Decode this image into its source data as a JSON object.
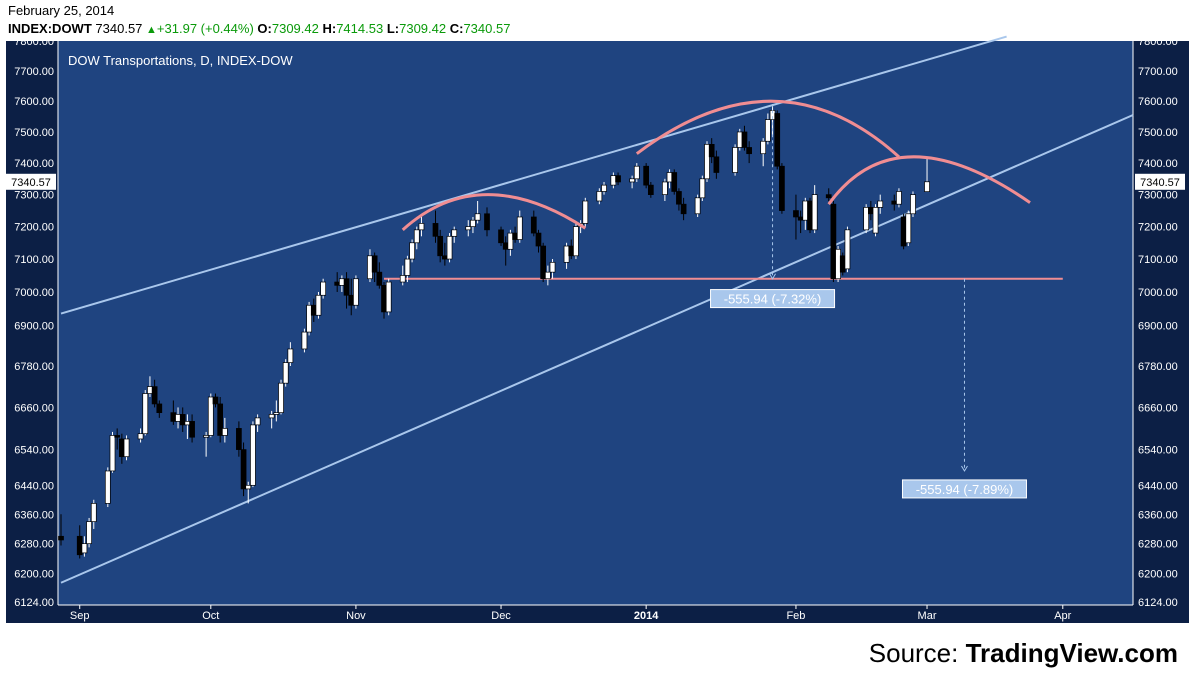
{
  "header": {
    "date": "February 25, 2014",
    "symbol": "INDEX:DOWT",
    "last": "7340.57",
    "change": "+31.97 (+0.44%)",
    "o_label": "O:",
    "o": "7309.42",
    "h_label": "H:",
    "h": "7414.53",
    "l_label": "L:",
    "l": "7309.42",
    "c_label": "C:",
    "c": "7340.57"
  },
  "source": {
    "prefix": "Source: ",
    "brand": "TradingView.com"
  },
  "chart_data": {
    "type": "candlestick",
    "title": "DOW Transportations, D, INDEX-DOW",
    "colors": {
      "background": "#1f4480",
      "frame": "#0c1f45",
      "up": "#ffffff",
      "down": "#000000",
      "channel": "#a9c7ec",
      "pattern": "#f08d92",
      "label_bg": "#a9c7ec"
    },
    "y_ticks": [
      "7800.00",
      "7700.00",
      "7600.00",
      "7500.00",
      "7400.00",
      "7300.00",
      "7200.00",
      "7100.00",
      "7000.00",
      "6900.00",
      "6780.00",
      "6660.00",
      "6540.00",
      "6440.00",
      "6360.00",
      "6280.00",
      "6200.00",
      "6124.00"
    ],
    "x_ticks": [
      {
        "label": "Sep",
        "date": "2013-09-03",
        "bold": false
      },
      {
        "label": "Oct",
        "date": "2013-10-01",
        "bold": false
      },
      {
        "label": "Nov",
        "date": "2013-11-01",
        "bold": false
      },
      {
        "label": "Dec",
        "date": "2013-12-02",
        "bold": false
      },
      {
        "label": "2014",
        "date": "2014-01-02",
        "bold": true
      },
      {
        "label": "Feb",
        "date": "2014-02-03",
        "bold": false
      },
      {
        "label": "Mar",
        "date": "2014-03-03",
        "bold": false
      },
      {
        "label": "Apr",
        "date": "2014-04-01",
        "bold": false
      }
    ],
    "last_price_label": "7340.57",
    "log_scale": true,
    "ylim": [
      6124,
      7800
    ],
    "xlim": [
      "2013-08-30",
      "2014-04-16"
    ],
    "candles": [
      {
        "d": "2013-08-30",
        "o": 6300,
        "h": 6360,
        "l": 6275,
        "c": 6290
      },
      {
        "d": "2013-09-03",
        "o": 6300,
        "h": 6330,
        "l": 6240,
        "c": 6250
      },
      {
        "d": "2013-09-04",
        "o": 6255,
        "h": 6300,
        "l": 6245,
        "c": 6280
      },
      {
        "d": "2013-09-05",
        "o": 6280,
        "h": 6350,
        "l": 6270,
        "c": 6340
      },
      {
        "d": "2013-09-06",
        "o": 6340,
        "h": 6400,
        "l": 6320,
        "c": 6390
      },
      {
        "d": "2013-09-09",
        "o": 6390,
        "h": 6490,
        "l": 6380,
        "c": 6480
      },
      {
        "d": "2013-09-10",
        "o": 6480,
        "h": 6590,
        "l": 6475,
        "c": 6580
      },
      {
        "d": "2013-09-11",
        "o": 6580,
        "h": 6600,
        "l": 6540,
        "c": 6575
      },
      {
        "d": "2013-09-12",
        "o": 6570,
        "h": 6585,
        "l": 6500,
        "c": 6520
      },
      {
        "d": "2013-09-13",
        "o": 6520,
        "h": 6580,
        "l": 6510,
        "c": 6570
      },
      {
        "d": "2013-09-16",
        "o": 6570,
        "h": 6600,
        "l": 6560,
        "c": 6585
      },
      {
        "d": "2013-09-17",
        "o": 6585,
        "h": 6710,
        "l": 6580,
        "c": 6700
      },
      {
        "d": "2013-09-18",
        "o": 6700,
        "h": 6750,
        "l": 6690,
        "c": 6720
      },
      {
        "d": "2013-09-19",
        "o": 6720,
        "h": 6740,
        "l": 6660,
        "c": 6670
      },
      {
        "d": "2013-09-20",
        "o": 6670,
        "h": 6680,
        "l": 6630,
        "c": 6645
      },
      {
        "d": "2013-09-23",
        "o": 6645,
        "h": 6680,
        "l": 6610,
        "c": 6620
      },
      {
        "d": "2013-09-24",
        "o": 6620,
        "h": 6660,
        "l": 6600,
        "c": 6640
      },
      {
        "d": "2013-09-25",
        "o": 6640,
        "h": 6660,
        "l": 6590,
        "c": 6610
      },
      {
        "d": "2013-09-26",
        "o": 6610,
        "h": 6640,
        "l": 6570,
        "c": 6620
      },
      {
        "d": "2013-09-27",
        "o": 6620,
        "h": 6640,
        "l": 6560,
        "c": 6575
      },
      {
        "d": "2013-09-30",
        "o": 6575,
        "h": 6590,
        "l": 6520,
        "c": 6580
      },
      {
        "d": "2013-10-01",
        "o": 6580,
        "h": 6700,
        "l": 6575,
        "c": 6690
      },
      {
        "d": "2013-10-02",
        "o": 6690,
        "h": 6700,
        "l": 6660,
        "c": 6670
      },
      {
        "d": "2013-10-03",
        "o": 6670,
        "h": 6690,
        "l": 6560,
        "c": 6580
      },
      {
        "d": "2013-10-04",
        "o": 6580,
        "h": 6630,
        "l": 6560,
        "c": 6600
      },
      {
        "d": "2013-10-07",
        "o": 6600,
        "h": 6620,
        "l": 6520,
        "c": 6540
      },
      {
        "d": "2013-10-08",
        "o": 6540,
        "h": 6560,
        "l": 6410,
        "c": 6430
      },
      {
        "d": "2013-10-09",
        "o": 6430,
        "h": 6450,
        "l": 6390,
        "c": 6440
      },
      {
        "d": "2013-10-10",
        "o": 6440,
        "h": 6620,
        "l": 6435,
        "c": 6610
      },
      {
        "d": "2013-10-11",
        "o": 6610,
        "h": 6640,
        "l": 6590,
        "c": 6630
      },
      {
        "d": "2013-10-14",
        "o": 6630,
        "h": 6650,
        "l": 6600,
        "c": 6640
      },
      {
        "d": "2013-10-15",
        "o": 6640,
        "h": 6680,
        "l": 6620,
        "c": 6645
      },
      {
        "d": "2013-10-16",
        "o": 6645,
        "h": 6740,
        "l": 6640,
        "c": 6730
      },
      {
        "d": "2013-10-17",
        "o": 6730,
        "h": 6800,
        "l": 6720,
        "c": 6790
      },
      {
        "d": "2013-10-18",
        "o": 6790,
        "h": 6850,
        "l": 6780,
        "c": 6830
      },
      {
        "d": "2013-10-21",
        "o": 6830,
        "h": 6890,
        "l": 6820,
        "c": 6880
      },
      {
        "d": "2013-10-22",
        "o": 6880,
        "h": 6970,
        "l": 6870,
        "c": 6960
      },
      {
        "d": "2013-10-23",
        "o": 6960,
        "h": 6980,
        "l": 6910,
        "c": 6930
      },
      {
        "d": "2013-10-24",
        "o": 6930,
        "h": 7000,
        "l": 6920,
        "c": 6990
      },
      {
        "d": "2013-10-25",
        "o": 6990,
        "h": 7040,
        "l": 6980,
        "c": 7030
      },
      {
        "d": "2013-10-28",
        "o": 7030,
        "h": 7060,
        "l": 7000,
        "c": 7020
      },
      {
        "d": "2013-10-29",
        "o": 7020,
        "h": 7050,
        "l": 7000,
        "c": 7040
      },
      {
        "d": "2013-10-30",
        "o": 7040,
        "h": 7060,
        "l": 6950,
        "c": 6990
      },
      {
        "d": "2013-10-31",
        "o": 6990,
        "h": 7040,
        "l": 6930,
        "c": 6960
      },
      {
        "d": "2013-11-01",
        "o": 6960,
        "h": 7050,
        "l": 6950,
        "c": 7040
      },
      {
        "d": "2013-11-04",
        "o": 7040,
        "h": 7130,
        "l": 7030,
        "c": 7110
      },
      {
        "d": "2013-11-05",
        "o": 7110,
        "h": 7120,
        "l": 7030,
        "c": 7060
      },
      {
        "d": "2013-11-06",
        "o": 7060,
        "h": 7090,
        "l": 7010,
        "c": 7020
      },
      {
        "d": "2013-11-07",
        "o": 7020,
        "h": 7030,
        "l": 6920,
        "c": 6940
      },
      {
        "d": "2013-11-08",
        "o": 6940,
        "h": 7040,
        "l": 6930,
        "c": 7030
      },
      {
        "d": "2013-11-11",
        "o": 7030,
        "h": 7080,
        "l": 7020,
        "c": 7050
      },
      {
        "d": "2013-11-12",
        "o": 7050,
        "h": 7110,
        "l": 7030,
        "c": 7100
      },
      {
        "d": "2013-11-13",
        "o": 7100,
        "h": 7160,
        "l": 7090,
        "c": 7150
      },
      {
        "d": "2013-11-14",
        "o": 7150,
        "h": 7200,
        "l": 7130,
        "c": 7190
      },
      {
        "d": "2013-11-15",
        "o": 7190,
        "h": 7230,
        "l": 7170,
        "c": 7210
      },
      {
        "d": "2013-11-18",
        "o": 7210,
        "h": 7250,
        "l": 7150,
        "c": 7170
      },
      {
        "d": "2013-11-19",
        "o": 7170,
        "h": 7190,
        "l": 7090,
        "c": 7110
      },
      {
        "d": "2013-11-20",
        "o": 7110,
        "h": 7150,
        "l": 7080,
        "c": 7100
      },
      {
        "d": "2013-11-21",
        "o": 7100,
        "h": 7180,
        "l": 7090,
        "c": 7170
      },
      {
        "d": "2013-11-22",
        "o": 7170,
        "h": 7200,
        "l": 7150,
        "c": 7190
      },
      {
        "d": "2013-11-25",
        "o": 7190,
        "h": 7220,
        "l": 7170,
        "c": 7200
      },
      {
        "d": "2013-11-26",
        "o": 7200,
        "h": 7230,
        "l": 7180,
        "c": 7220
      },
      {
        "d": "2013-11-27",
        "o": 7220,
        "h": 7280,
        "l": 7210,
        "c": 7240
      },
      {
        "d": "2013-11-29",
        "o": 7240,
        "h": 7260,
        "l": 7170,
        "c": 7190
      },
      {
        "d": "2013-12-02",
        "o": 7190,
        "h": 7200,
        "l": 7140,
        "c": 7150
      },
      {
        "d": "2013-12-03",
        "o": 7150,
        "h": 7170,
        "l": 7080,
        "c": 7130
      },
      {
        "d": "2013-12-04",
        "o": 7130,
        "h": 7190,
        "l": 7110,
        "c": 7180
      },
      {
        "d": "2013-12-05",
        "o": 7180,
        "h": 7200,
        "l": 7150,
        "c": 7160
      },
      {
        "d": "2013-12-06",
        "o": 7160,
        "h": 7250,
        "l": 7150,
        "c": 7230
      },
      {
        "d": "2013-12-09",
        "o": 7230,
        "h": 7250,
        "l": 7170,
        "c": 7180
      },
      {
        "d": "2013-12-10",
        "o": 7180,
        "h": 7190,
        "l": 7120,
        "c": 7140
      },
      {
        "d": "2013-12-11",
        "o": 7140,
        "h": 7150,
        "l": 7030,
        "c": 7040
      },
      {
        "d": "2013-12-12",
        "o": 7040,
        "h": 7080,
        "l": 7020,
        "c": 7060
      },
      {
        "d": "2013-12-13",
        "o": 7060,
        "h": 7100,
        "l": 7040,
        "c": 7090
      },
      {
        "d": "2013-12-16",
        "o": 7090,
        "h": 7150,
        "l": 7070,
        "c": 7140
      },
      {
        "d": "2013-12-17",
        "o": 7140,
        "h": 7160,
        "l": 7100,
        "c": 7110
      },
      {
        "d": "2013-12-18",
        "o": 7110,
        "h": 7210,
        "l": 7100,
        "c": 7200
      },
      {
        "d": "2013-12-19",
        "o": 7200,
        "h": 7220,
        "l": 7180,
        "c": 7210
      },
      {
        "d": "2013-12-20",
        "o": 7210,
        "h": 7290,
        "l": 7200,
        "c": 7280
      },
      {
        "d": "2013-12-23",
        "o": 7280,
        "h": 7320,
        "l": 7270,
        "c": 7310
      },
      {
        "d": "2013-12-24",
        "o": 7310,
        "h": 7340,
        "l": 7300,
        "c": 7330
      },
      {
        "d": "2013-12-26",
        "o": 7330,
        "h": 7370,
        "l": 7320,
        "c": 7360
      },
      {
        "d": "2013-12-27",
        "o": 7360,
        "h": 7370,
        "l": 7330,
        "c": 7340
      },
      {
        "d": "2013-12-30",
        "o": 7340,
        "h": 7360,
        "l": 7320,
        "c": 7350
      },
      {
        "d": "2013-12-31",
        "o": 7350,
        "h": 7400,
        "l": 7340,
        "c": 7390
      },
      {
        "d": "2014-01-02",
        "o": 7390,
        "h": 7400,
        "l": 7320,
        "c": 7330
      },
      {
        "d": "2014-01-03",
        "o": 7330,
        "h": 7340,
        "l": 7290,
        "c": 7300
      },
      {
        "d": "2014-01-06",
        "o": 7300,
        "h": 7350,
        "l": 7280,
        "c": 7340
      },
      {
        "d": "2014-01-07",
        "o": 7340,
        "h": 7380,
        "l": 7320,
        "c": 7370
      },
      {
        "d": "2014-01-08",
        "o": 7370,
        "h": 7380,
        "l": 7300,
        "c": 7310
      },
      {
        "d": "2014-01-09",
        "o": 7310,
        "h": 7320,
        "l": 7250,
        "c": 7270
      },
      {
        "d": "2014-01-10",
        "o": 7270,
        "h": 7290,
        "l": 7220,
        "c": 7240
      },
      {
        "d": "2014-01-13",
        "o": 7240,
        "h": 7300,
        "l": 7230,
        "c": 7290
      },
      {
        "d": "2014-01-14",
        "o": 7290,
        "h": 7360,
        "l": 7280,
        "c": 7350
      },
      {
        "d": "2014-01-15",
        "o": 7350,
        "h": 7470,
        "l": 7340,
        "c": 7460
      },
      {
        "d": "2014-01-16",
        "o": 7460,
        "h": 7480,
        "l": 7400,
        "c": 7420
      },
      {
        "d": "2014-01-17",
        "o": 7420,
        "h": 7440,
        "l": 7350,
        "c": 7370
      },
      {
        "d": "2014-01-21",
        "o": 7370,
        "h": 7460,
        "l": 7360,
        "c": 7450
      },
      {
        "d": "2014-01-22",
        "o": 7450,
        "h": 7510,
        "l": 7440,
        "c": 7500
      },
      {
        "d": "2014-01-23",
        "o": 7500,
        "h": 7520,
        "l": 7440,
        "c": 7450
      },
      {
        "d": "2014-01-24",
        "o": 7450,
        "h": 7470,
        "l": 7400,
        "c": 7430
      },
      {
        "d": "2014-01-27",
        "o": 7430,
        "h": 7480,
        "l": 7390,
        "c": 7470
      },
      {
        "d": "2014-01-28",
        "o": 7470,
        "h": 7560,
        "l": 7460,
        "c": 7540
      },
      {
        "d": "2014-01-29",
        "o": 7540,
        "h": 7590,
        "l": 7490,
        "c": 7570
      },
      {
        "d": "2014-01-30",
        "o": 7560,
        "h": 7570,
        "l": 7380,
        "c": 7390
      },
      {
        "d": "2014-01-31",
        "o": 7390,
        "h": 7400,
        "l": 7240,
        "c": 7250
      },
      {
        "d": "2014-02-03",
        "o": 7250,
        "h": 7300,
        "l": 7160,
        "c": 7230
      },
      {
        "d": "2014-02-04",
        "o": 7230,
        "h": 7250,
        "l": 7180,
        "c": 7220
      },
      {
        "d": "2014-02-05",
        "o": 7220,
        "h": 7290,
        "l": 7190,
        "c": 7280
      },
      {
        "d": "2014-02-06",
        "o": 7280,
        "h": 7290,
        "l": 7180,
        "c": 7190
      },
      {
        "d": "2014-02-07",
        "o": 7190,
        "h": 7330,
        "l": 7180,
        "c": 7300
      },
      {
        "d": "2014-02-10",
        "o": 7300,
        "h": 7320,
        "l": 7280,
        "c": 7290
      },
      {
        "d": "2014-02-11",
        "o": 7270,
        "h": 7280,
        "l": 7030,
        "c": 7040
      },
      {
        "d": "2014-02-12",
        "o": 7040,
        "h": 7140,
        "l": 7030,
        "c": 7130
      },
      {
        "d": "2014-02-13",
        "o": 7110,
        "h": 7120,
        "l": 7050,
        "c": 7060
      },
      {
        "d": "2014-02-14",
        "o": 7070,
        "h": 7200,
        "l": 7060,
        "c": 7190
      },
      {
        "d": "2014-02-18",
        "o": 7190,
        "h": 7270,
        "l": 7180,
        "c": 7260
      },
      {
        "d": "2014-02-19",
        "o": 7260,
        "h": 7280,
        "l": 7220,
        "c": 7240
      },
      {
        "d": "2014-02-20",
        "o": 7180,
        "h": 7270,
        "l": 7170,
        "c": 7260
      },
      {
        "d": "2014-02-21",
        "o": 7260,
        "h": 7300,
        "l": 7240,
        "c": 7280
      },
      {
        "d": "2014-02-24",
        "o": 7280,
        "h": 7300,
        "l": 7250,
        "c": 7270
      },
      {
        "d": "2014-02-25",
        "o": 7270,
        "h": 7320,
        "l": 7260,
        "c": 7310
      },
      {
        "d": "2014-02-26",
        "o": 7230,
        "h": 7240,
        "l": 7130,
        "c": 7140
      },
      {
        "d": "2014-02-27",
        "o": 7150,
        "h": 7250,
        "l": 7140,
        "c": 7240
      },
      {
        "d": "2014-02-28",
        "o": 7240,
        "h": 7310,
        "l": 7230,
        "c": 7300
      },
      {
        "d": "2014-03-03",
        "o": 7309.42,
        "h": 7414.53,
        "l": 7309.42,
        "c": 7340.57
      }
    ],
    "channel_lines": [
      {
        "from": {
          "d": "2013-08-30",
          "v": 6935
        },
        "to": {
          "d": "2014-03-20",
          "v": 7815
        }
      },
      {
        "from": {
          "d": "2013-08-30",
          "v": 6175
        },
        "to": {
          "d": "2014-04-16",
          "v": 7555
        }
      }
    ],
    "neckline": {
      "from": {
        "d": "2013-11-07",
        "v": 7040
      },
      "to": {
        "d": "2014-04-01",
        "v": 7040
      }
    },
    "arcs": [
      {
        "from": {
          "d": "2013-11-11",
          "v": 7190
        },
        "peak": {
          "d": "2013-11-29",
          "v": 7300
        },
        "to": {
          "d": "2013-12-20",
          "v": 7195
        }
      },
      {
        "from": {
          "d": "2013-12-31",
          "v": 7430
        },
        "peak": {
          "d": "2014-01-29",
          "v": 7600
        },
        "to": {
          "d": "2014-02-25",
          "v": 7420
        }
      },
      {
        "from": {
          "d": "2014-02-10",
          "v": 7270
        },
        "peak": {
          "d": "2014-02-28",
          "v": 7420
        },
        "to": {
          "d": "2014-03-25",
          "v": 7275
        }
      }
    ],
    "measures": [
      {
        "label": "-555.94 (-7.32%)",
        "x": "2014-01-29",
        "from_v": 7590,
        "to_v": 7040,
        "label_v": 6980
      },
      {
        "label": "-555.94 (-7.89%)",
        "x": "2014-03-11",
        "from_v": 7040,
        "to_v": 6480,
        "label_v": 6430
      }
    ]
  }
}
